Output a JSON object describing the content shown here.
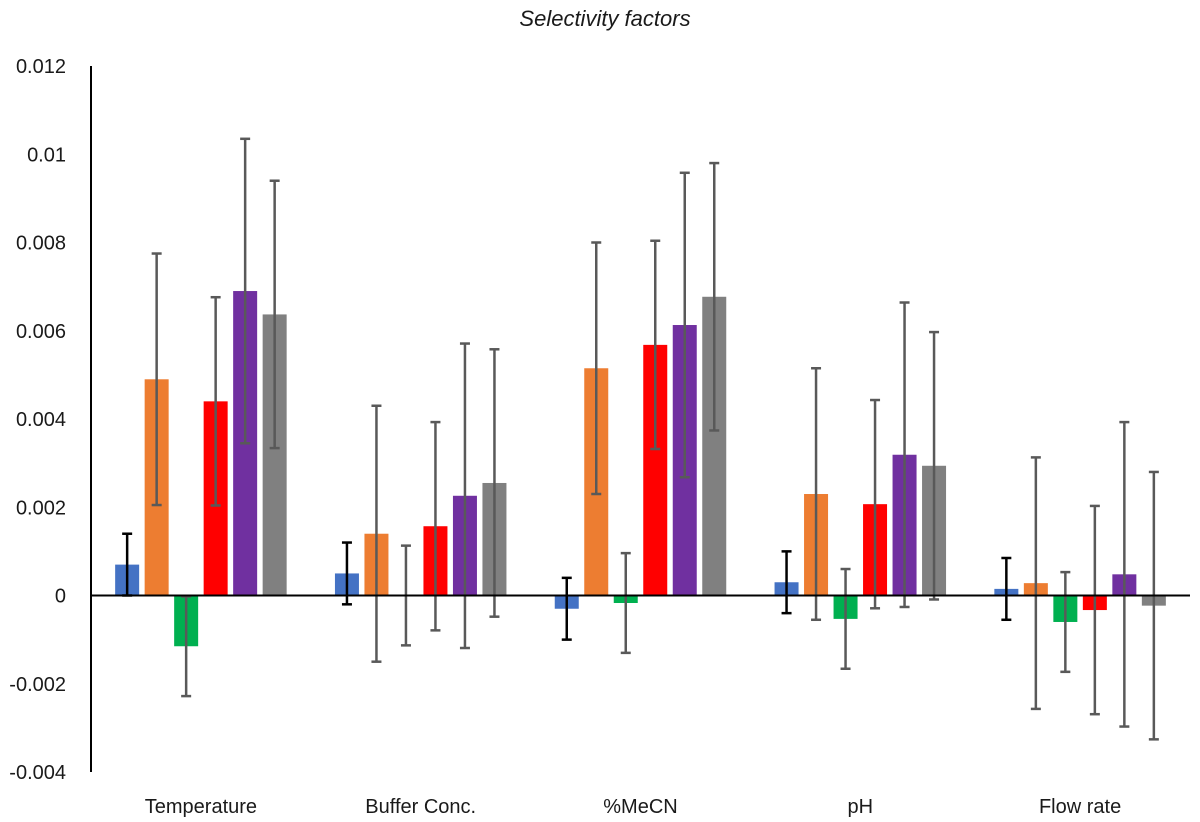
{
  "chart_data": {
    "type": "bar",
    "title": "Selectivity factors",
    "xlabel": "",
    "ylabel": "",
    "ylim": [
      -0.004,
      0.012
    ],
    "yticks": [
      -0.004,
      -0.002,
      0,
      0.002,
      0.004,
      0.006,
      0.008,
      0.01,
      0.012
    ],
    "ytick_labels": [
      "-0.004",
      "-0.002",
      "0",
      "0.002",
      "0.004",
      "0.006",
      "0.008",
      "0.01",
      "0.012"
    ],
    "categories": [
      "Temperature",
      "Buffer Conc.",
      "%MeCN",
      "pH",
      "Flow rate"
    ],
    "grid": false,
    "legend": "none",
    "series": [
      {
        "color": "#4472C4",
        "errorbar_color": "#000000",
        "values": [
          0.0007,
          0.0005,
          -0.0003,
          0.0003,
          0.00015
        ],
        "error": [
          0.0007,
          0.0007,
          0.0007,
          0.0007,
          0.0007
        ]
      },
      {
        "color": "#ED7D31",
        "errorbar_color": "#595959",
        "values": [
          0.0049,
          0.0014,
          0.00515,
          0.0023,
          0.00028
        ],
        "error": [
          0.00285,
          0.0029,
          0.00285,
          0.00285,
          0.00285
        ]
      },
      {
        "color": "#00B050",
        "errorbar_color": "#595959",
        "values": [
          -0.00115,
          0.0,
          -0.00017,
          -0.00053,
          -0.0006
        ],
        "error": [
          0.00113,
          0.00113,
          0.00113,
          0.00113,
          0.00113
        ]
      },
      {
        "color": "#FF0000",
        "errorbar_color": "#595959",
        "values": [
          0.0044,
          0.00157,
          0.00568,
          0.00207,
          -0.00033
        ],
        "error": [
          0.00236,
          0.00236,
          0.00236,
          0.00236,
          0.00236
        ]
      },
      {
        "color": "#7030A0",
        "errorbar_color": "#595959",
        "values": [
          0.0069,
          0.00226,
          0.00613,
          0.00319,
          0.00048
        ],
        "error": [
          0.00345,
          0.00345,
          0.00345,
          0.00345,
          0.00345
        ]
      },
      {
        "color": "#808080",
        "errorbar_color": "#595959",
        "values": [
          0.00637,
          0.00255,
          0.00677,
          0.00294,
          -0.00023
        ],
        "error": [
          0.00303,
          0.00303,
          0.00303,
          0.00303,
          0.00303
        ]
      }
    ]
  }
}
